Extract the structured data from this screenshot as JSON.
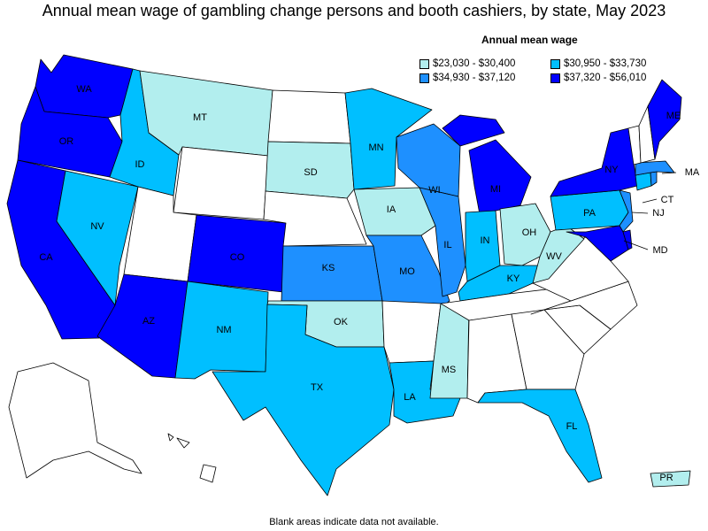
{
  "title": "Annual mean wage of gambling change persons and booth cashiers, by state, May 2023",
  "legend": {
    "title": "Annual mean wage",
    "items": [
      {
        "label": "$23,030 - $30,400",
        "color": "#b2eeee"
      },
      {
        "label": "$30,950 - $33,730",
        "color": "#00bfff"
      },
      {
        "label": "$34,930 - $37,120",
        "color": "#1e90ff"
      },
      {
        "label": "$37,320 - $56,010",
        "color": "#0000ff"
      }
    ]
  },
  "no_data_color": "#ffffff",
  "footnote": "Blank areas indicate data not available.",
  "states": {
    "WA": {
      "label": "WA",
      "bin": 3
    },
    "OR": {
      "label": "OR",
      "bin": 3
    },
    "CA": {
      "label": "CA",
      "bin": 3
    },
    "NV": {
      "label": "NV",
      "bin": 1
    },
    "ID": {
      "label": "ID",
      "bin": 1
    },
    "MT": {
      "label": "MT",
      "bin": 0
    },
    "WY": {
      "label": "",
      "bin": null
    },
    "UT": {
      "label": "",
      "bin": null
    },
    "AZ": {
      "label": "AZ",
      "bin": 3
    },
    "CO": {
      "label": "CO",
      "bin": 3
    },
    "NM": {
      "label": "NM",
      "bin": 1
    },
    "ND": {
      "label": "",
      "bin": null
    },
    "SD": {
      "label": "SD",
      "bin": 0
    },
    "NE": {
      "label": "",
      "bin": null
    },
    "KS": {
      "label": "KS",
      "bin": 2
    },
    "OK": {
      "label": "OK",
      "bin": 0
    },
    "TX": {
      "label": "TX",
      "bin": 1
    },
    "MN": {
      "label": "MN",
      "bin": 1
    },
    "IA": {
      "label": "IA",
      "bin": 0
    },
    "MO": {
      "label": "MO",
      "bin": 2
    },
    "AR": {
      "label": "",
      "bin": null
    },
    "LA": {
      "label": "LA",
      "bin": 1
    },
    "WI": {
      "label": "WI",
      "bin": 2
    },
    "IL": {
      "label": "IL",
      "bin": 2
    },
    "MS": {
      "label": "MS",
      "bin": 0
    },
    "MI": {
      "label": "MI",
      "bin": 3
    },
    "IN": {
      "label": "IN",
      "bin": 1
    },
    "KY": {
      "label": "KY",
      "bin": 1
    },
    "TN": {
      "label": "",
      "bin": null
    },
    "AL": {
      "label": "",
      "bin": null
    },
    "OH": {
      "label": "OH",
      "bin": 0
    },
    "WV": {
      "label": "WV",
      "bin": 0
    },
    "VA": {
      "label": "",
      "bin": null
    },
    "NC": {
      "label": "",
      "bin": null
    },
    "SC": {
      "label": "",
      "bin": null
    },
    "GA": {
      "label": "",
      "bin": null
    },
    "FL": {
      "label": "FL",
      "bin": 1
    },
    "PA": {
      "label": "PA",
      "bin": 1
    },
    "NY": {
      "label": "NY",
      "bin": 3
    },
    "MD": {
      "label": "MD",
      "bin": 3
    },
    "DE": {
      "label": "",
      "bin": 3
    },
    "NJ": {
      "label": "NJ",
      "bin": 2
    },
    "CT": {
      "label": "CT",
      "bin": 1
    },
    "RI": {
      "label": "",
      "bin": 2
    },
    "MA": {
      "label": "MA",
      "bin": 2
    },
    "VT": {
      "label": "",
      "bin": null
    },
    "NH": {
      "label": "",
      "bin": null
    },
    "ME": {
      "label": "ME",
      "bin": 3
    },
    "AK": {
      "label": "",
      "bin": null
    },
    "HI": {
      "label": "",
      "bin": null
    },
    "PR": {
      "label": "PR",
      "bin": 0
    }
  }
}
